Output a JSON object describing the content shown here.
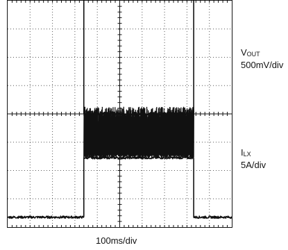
{
  "chart_data": {
    "type": "line",
    "title": "",
    "xlabel": "100ms/div",
    "ylabel": "",
    "grid": true,
    "x_divisions": 10,
    "y_divisions": 8,
    "series": [
      {
        "name": "V_OUT",
        "label_main": "V",
        "label_sub": "OUT",
        "scale": "500mV/div",
        "points_div": [
          [
            0,
            7.65
          ],
          [
            3.4,
            7.65
          ],
          [
            3.4,
            0.0
          ],
          [
            8.3,
            0.0
          ],
          [
            8.3,
            7.65
          ],
          [
            10,
            7.65
          ]
        ],
        "noise_div": 0.04
      },
      {
        "name": "I_LX",
        "label_main": "I",
        "label_sub": "LX",
        "scale": "5A/div",
        "points_div": [
          [
            0,
            -3.65
          ],
          [
            3.4,
            -3.65
          ],
          [
            3.4,
            -1.55
          ],
          [
            8.3,
            -1.55
          ],
          [
            8.3,
            -3.65
          ],
          [
            10,
            -3.65
          ]
        ],
        "ripple_div": [
          -1.55,
          0.25
        ],
        "noise_div": 0.04
      }
    ]
  },
  "colors": {
    "trace": "#111111",
    "grid": "#555555",
    "frame": "#111111"
  }
}
